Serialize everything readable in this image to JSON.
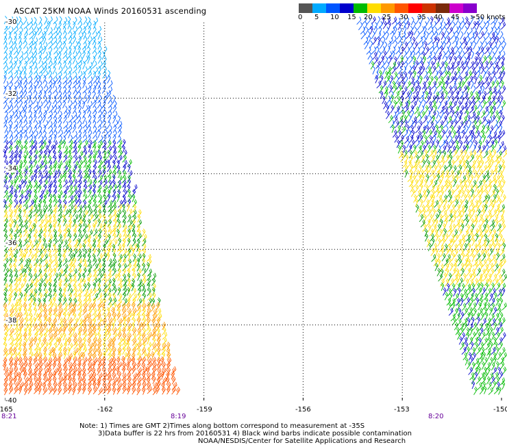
{
  "title": "ASCAT 25KM NOAA Winds 20160531 ascending",
  "scale": {
    "colors": [
      "#555555",
      "#00aaff",
      "#0055ff",
      "#0000cc",
      "#00bb00",
      "#ffdd00",
      "#ff9900",
      "#ff5500",
      "#ff0000",
      "#cc3300",
      "#7a2a0a",
      "#cc00cc",
      "#8800cc"
    ],
    "labels": [
      "0",
      "5",
      "10",
      "15",
      "20",
      "25",
      "30",
      "35",
      "40",
      "45",
      ">50 knots"
    ]
  },
  "axes": {
    "lon_ticks": [
      "-165",
      "-162",
      "-159",
      "-156",
      "-153",
      "-150"
    ],
    "lat_ticks": [
      "-30",
      "-32",
      "-34",
      "-36",
      "-38",
      "-40"
    ],
    "xlim": [
      -165,
      -150
    ],
    "ylim": [
      -40,
      -30
    ]
  },
  "times": [
    "8:21",
    "8:19",
    "8:20"
  ],
  "notes": {
    "line1": "Note: 1) Times are GMT 2)Times along bottom correspond to measurement at -35S",
    "line2": "3)Data buffer is 22 hrs from 20160531 4) Black wind barbs indicate possible contamination",
    "line3": "NOAA/NESDIS/Center for Satellite Applications and Research"
  },
  "wind_field": {
    "type": "wind barbs",
    "swaths": [
      {
        "lon_range": "-165 to -160.5",
        "bands": [
          {
            "lat": [
              -31.5,
              -30
            ],
            "knots": 7
          },
          {
            "lat": [
              -33.2,
              -31.5
            ],
            "knots": 12
          },
          {
            "lat": [
              -35,
              -33.2
            ],
            "knots": 17
          },
          {
            "lat": [
              -37.5,
              -35
            ],
            "knots": 22
          },
          {
            "lat": [
              -39,
              -37.5
            ],
            "knots": 25
          },
          {
            "lat": [
              -40,
              -39
            ],
            "knots": 32
          }
        ]
      },
      {
        "lon_range": "-153.3 to -150",
        "bands": [
          {
            "lat": [
              -31,
              -30
            ],
            "knots": 14
          },
          {
            "lat": [
              -33.5,
              -31
            ],
            "knots": 16
          },
          {
            "lat": [
              -37,
              -33.5
            ],
            "knots": 23
          },
          {
            "lat": [
              -40,
              -37
            ],
            "knots": 18
          }
        ]
      }
    ]
  }
}
